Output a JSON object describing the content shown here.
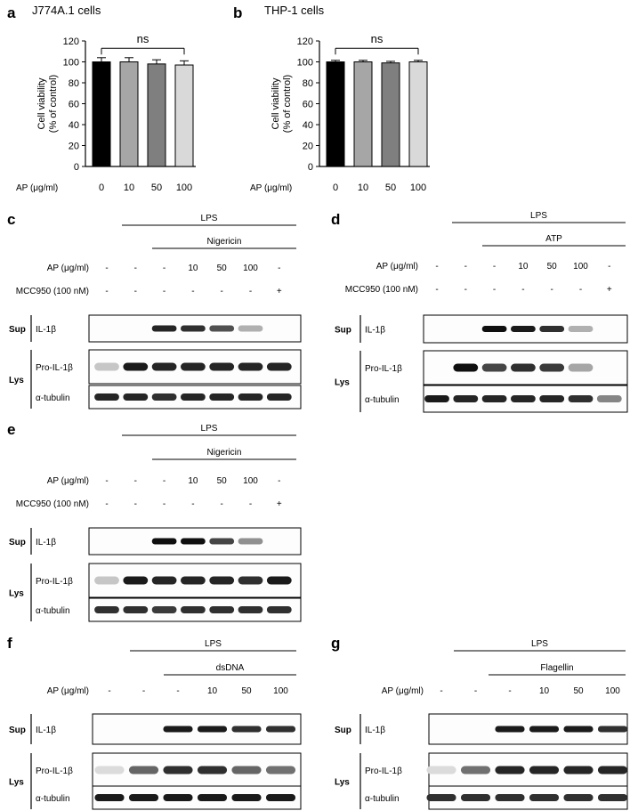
{
  "labels": {
    "a": "a",
    "b": "b",
    "c": "c",
    "d": "d",
    "e": "e",
    "f": "f",
    "g": "g"
  },
  "chart_data": [
    {
      "type": "bar",
      "title": "J774A.1 cells",
      "ylabel_line1": "Cell viability",
      "ylabel_line2": "(% of control)",
      "xlabel": "AP (μg/ml)",
      "categories": [
        "0",
        "10",
        "50",
        "100"
      ],
      "values": [
        100,
        100,
        98,
        97
      ],
      "errors": [
        4,
        4,
        4,
        4
      ],
      "colors": [
        "#000000",
        "#a6a6a6",
        "#7f7f7f",
        "#d9d9d9"
      ],
      "ylim": [
        0,
        120
      ],
      "yticks": [
        "0",
        "20",
        "40",
        "60",
        "80",
        "100",
        "120"
      ],
      "annotation": "ns"
    },
    {
      "type": "bar",
      "title": "THP-1 cells",
      "ylabel_line1": "Cell viability",
      "ylabel_line2": "(% of control)",
      "xlabel": "AP (μg/ml)",
      "categories": [
        "0",
        "10",
        "50",
        "100"
      ],
      "values": [
        100,
        100,
        99,
        100
      ],
      "errors": [
        1.5,
        1.5,
        1.5,
        1.5
      ],
      "colors": [
        "#000000",
        "#a6a6a6",
        "#7f7f7f",
        "#d9d9d9"
      ],
      "ylim": [
        0,
        120
      ],
      "yticks": [
        "0",
        "20",
        "40",
        "60",
        "80",
        "100",
        "120"
      ],
      "annotation": "ns"
    }
  ],
  "blots": {
    "lps": "LPS",
    "ap_label": "AP (μg/ml)",
    "mcc_label": "MCC950 (100 nM)",
    "sup": "Sup",
    "lys": "Lys",
    "il1b": "IL-1β",
    "pro": "Pro-IL-1β",
    "tub": "α-tubulin",
    "c": {
      "stim": "Nigericin",
      "ap": [
        "-",
        "-",
        "-",
        "10",
        "50",
        "100",
        "-"
      ],
      "mcc": [
        "-",
        "-",
        "-",
        "-",
        "-",
        "-",
        "+"
      ],
      "sup": [
        0,
        0,
        0.9,
        0.85,
        0.7,
        0.25,
        0
      ],
      "pro": [
        0.15,
        0.95,
        0.9,
        0.9,
        0.9,
        0.9,
        0.9
      ],
      "tub": [
        0.9,
        0.9,
        0.85,
        0.9,
        0.9,
        0.9,
        0.9
      ]
    },
    "d": {
      "stim": "ATP",
      "ap": [
        "-",
        "-",
        "-",
        "10",
        "50",
        "100",
        "-"
      ],
      "mcc": [
        "-",
        "-",
        "-",
        "-",
        "-",
        "-",
        "+"
      ],
      "sup": [
        0,
        0,
        1,
        0.95,
        0.85,
        0.25,
        0
      ],
      "pro": [
        0,
        1,
        0.75,
        0.85,
        0.8,
        0.3,
        0
      ],
      "tub": [
        0.95,
        0.9,
        0.9,
        0.9,
        0.9,
        0.85,
        0.45
      ]
    },
    "e": {
      "stim": "Nigericin",
      "ap": [
        "-",
        "-",
        "-",
        "10",
        "50",
        "100",
        "-"
      ],
      "mcc": [
        "-",
        "-",
        "-",
        "-",
        "-",
        "-",
        "+"
      ],
      "sup": [
        0,
        0,
        1,
        1,
        0.75,
        0.4,
        0
      ],
      "pro": [
        0.15,
        0.95,
        0.9,
        0.9,
        0.9,
        0.85,
        0.95
      ],
      "tub": [
        0.85,
        0.85,
        0.8,
        0.85,
        0.85,
        0.85,
        0.85
      ]
    },
    "f": {
      "stim": "dsDNA",
      "ap": [
        "-",
        "-",
        "-",
        "10",
        "50",
        "100"
      ],
      "sup": [
        0,
        0,
        0.95,
        0.95,
        0.85,
        0.85
      ],
      "pro": [
        0.05,
        0.6,
        0.85,
        0.85,
        0.6,
        0.55
      ],
      "tub": [
        0.95,
        0.95,
        0.95,
        0.95,
        0.95,
        0.95
      ]
    },
    "g": {
      "stim": "Flagellin",
      "ap": [
        "-",
        "-",
        "-",
        "10",
        "50",
        "100"
      ],
      "sup": [
        0,
        0,
        0.95,
        0.95,
        0.95,
        0.85
      ],
      "pro": [
        0.05,
        0.55,
        0.9,
        0.9,
        0.9,
        0.9
      ],
      "tub": [
        0.85,
        0.85,
        0.85,
        0.85,
        0.85,
        0.85
      ]
    }
  }
}
